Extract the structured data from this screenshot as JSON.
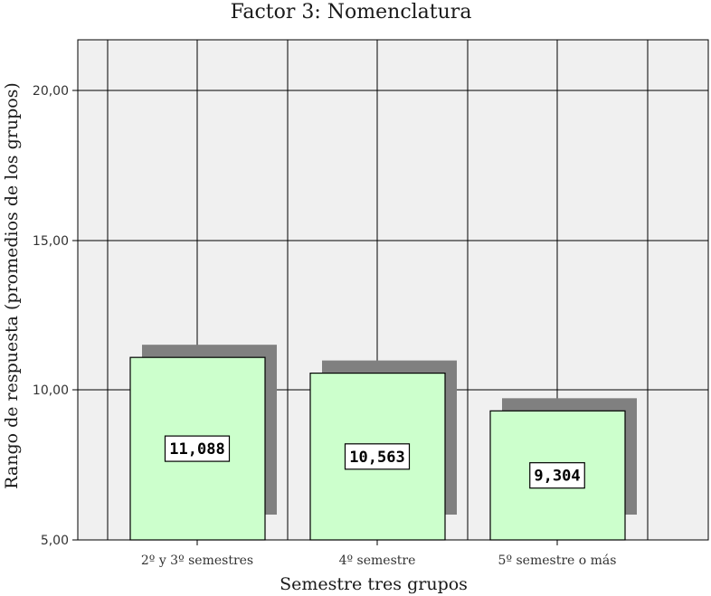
{
  "chart_data": {
    "type": "bar",
    "title": "Factor 3: Nomenclatura",
    "xlabel": "Semestre tres grupos",
    "ylabel": "Rango de respuesta (promedios de los grupos)",
    "categories": [
      "2º y 3º semestres",
      "4º semestre",
      "5º semestre o más"
    ],
    "values": [
      11.088,
      10.563,
      9.304
    ],
    "data_labels": [
      "11,088",
      "10,563",
      "9,304"
    ],
    "ylim": [
      5,
      21.6
    ],
    "yticks": [
      5,
      10,
      15,
      20
    ],
    "ytick_labels": [
      "5,00",
      "10,00",
      "15,00",
      "20,00"
    ],
    "grid": true,
    "legend": "none",
    "colors": {
      "bar_fill": "#ccffcc",
      "bar_stroke": "#000000",
      "shadow": "#808080",
      "plot_background": "#f0f0f0",
      "grid": "#000000"
    }
  }
}
